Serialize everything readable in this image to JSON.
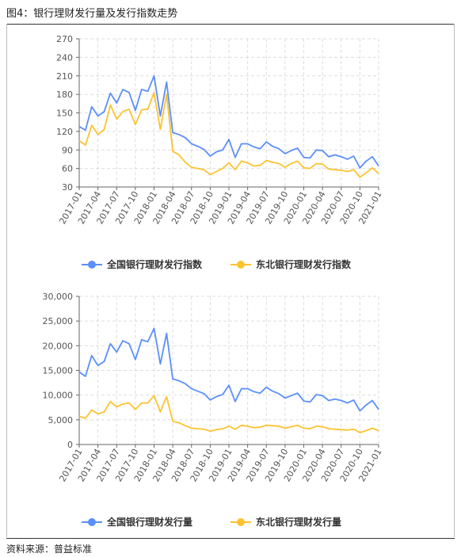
{
  "figure": {
    "title": "图4：银行理财发行量及发行指数走势",
    "source": "资料来源：普益标准"
  },
  "colors": {
    "national": "#5b8ff9",
    "northeast": "#fcc331",
    "axis": "#666666",
    "grid": "#dddddd"
  },
  "chart_data": [
    {
      "type": "line",
      "categories": [
        "2017-01",
        "2017-02",
        "2017-03",
        "2017-04",
        "2017-05",
        "2017-06",
        "2017-07",
        "2017-08",
        "2017-09",
        "2017-10",
        "2017-11",
        "2017-12",
        "2018-01",
        "2018-02",
        "2018-03",
        "2018-04",
        "2018-05",
        "2018-06",
        "2018-07",
        "2018-08",
        "2018-09",
        "2018-10",
        "2018-11",
        "2018-12",
        "2019-01",
        "2019-02",
        "2019-03",
        "2019-04",
        "2019-05",
        "2019-06",
        "2019-07",
        "2019-08",
        "2019-09",
        "2019-10",
        "2019-11",
        "2019-12",
        "2020-01",
        "2020-02",
        "2020-03",
        "2020-04",
        "2020-05",
        "2020-06",
        "2020-07",
        "2020-08",
        "2020-09",
        "2020-10",
        "2020-11",
        "2020-12",
        "2021-01"
      ],
      "tick_labels": [
        "2017-01",
        "2017-04",
        "2017-07",
        "2017-10",
        "2018-01",
        "2018-04",
        "2018-07",
        "2018-10",
        "2019-01",
        "2019-04",
        "2019-07",
        "2019-10",
        "2020-01",
        "2020-04",
        "2020-07",
        "2020-10",
        "2021-01"
      ],
      "ylim": [
        30,
        270
      ],
      "yticks": [
        "30",
        "60",
        "90",
        "120",
        "150",
        "180",
        "210",
        "240",
        "270"
      ],
      "series": [
        {
          "name": "全国银行理财发行指数",
          "color": "#5b8ff9",
          "values": [
            128,
            122,
            160,
            145,
            152,
            182,
            166,
            188,
            183,
            154,
            188,
            185,
            210,
            145,
            200,
            118,
            115,
            110,
            100,
            96,
            91,
            80,
            87,
            90,
            107,
            78,
            100,
            100,
            95,
            92,
            103,
            96,
            92,
            84,
            89,
            93,
            78,
            77,
            90,
            89,
            79,
            82,
            79,
            75,
            80,
            61,
            72,
            79,
            64
          ]
        },
        {
          "name": "东北银行理财发行指数",
          "color": "#fcc331",
          "values": [
            105,
            98,
            130,
            115,
            123,
            163,
            140,
            152,
            156,
            131,
            155,
            156,
            183,
            123,
            180,
            88,
            82,
            70,
            62,
            60,
            58,
            50,
            55,
            60,
            69,
            58,
            72,
            69,
            64,
            65,
            73,
            70,
            68,
            62,
            68,
            72,
            61,
            60,
            68,
            67,
            59,
            58,
            57,
            55,
            58,
            46,
            53,
            61,
            52
          ]
        }
      ]
    },
    {
      "type": "line",
      "categories": [
        "2017-01",
        "2017-02",
        "2017-03",
        "2017-04",
        "2017-05",
        "2017-06",
        "2017-07",
        "2017-08",
        "2017-09",
        "2017-10",
        "2017-11",
        "2017-12",
        "2018-01",
        "2018-02",
        "2018-03",
        "2018-04",
        "2018-05",
        "2018-06",
        "2018-07",
        "2018-08",
        "2018-09",
        "2018-10",
        "2018-11",
        "2018-12",
        "2019-01",
        "2019-02",
        "2019-03",
        "2019-04",
        "2019-05",
        "2019-06",
        "2019-07",
        "2019-08",
        "2019-09",
        "2019-10",
        "2019-11",
        "2019-12",
        "2020-01",
        "2020-02",
        "2020-03",
        "2020-04",
        "2020-05",
        "2020-06",
        "2020-07",
        "2020-08",
        "2020-09",
        "2020-10",
        "2020-11",
        "2020-12",
        "2021-01"
      ],
      "tick_labels": [
        "2017-01",
        "2017-04",
        "2017-07",
        "2017-10",
        "2018-01",
        "2018-04",
        "2018-07",
        "2018-10",
        "2019-01",
        "2019-04",
        "2019-07",
        "2019-10",
        "2020-01",
        "2020-04",
        "2020-07",
        "2020-10",
        "2021-01"
      ],
      "ylim": [
        0,
        30000
      ],
      "yticks": [
        "0",
        "5,000",
        "10,000",
        "15,000",
        "20,000",
        "25,000",
        "30,000"
      ],
      "series": [
        {
          "name": "全国银行理财发行量",
          "color": "#5b8ff9",
          "values": [
            14700,
            13800,
            18000,
            16000,
            16800,
            20400,
            18700,
            21000,
            20400,
            17200,
            21200,
            20800,
            23500,
            16300,
            22500,
            13300,
            12900,
            12300,
            11300,
            10800,
            10300,
            9000,
            9700,
            10100,
            12000,
            8700,
            11300,
            11300,
            10700,
            10400,
            11600,
            10800,
            10300,
            9400,
            9900,
            10400,
            8800,
            8600,
            10100,
            9900,
            8900,
            9200,
            8900,
            8400,
            9000,
            6800,
            8000,
            8900,
            7100
          ]
        },
        {
          "name": "东北银行理财发行量",
          "color": "#fcc331",
          "values": [
            5700,
            5300,
            7000,
            6200,
            6600,
            8700,
            7600,
            8200,
            8400,
            7100,
            8400,
            8400,
            9900,
            6600,
            9700,
            4700,
            4400,
            3800,
            3300,
            3200,
            3100,
            2700,
            3000,
            3200,
            3700,
            3100,
            3900,
            3700,
            3400,
            3500,
            3900,
            3800,
            3700,
            3300,
            3600,
            3900,
            3300,
            3200,
            3700,
            3600,
            3200,
            3100,
            3000,
            2900,
            3100,
            2400,
            2800,
            3300,
            2800
          ]
        }
      ]
    }
  ]
}
